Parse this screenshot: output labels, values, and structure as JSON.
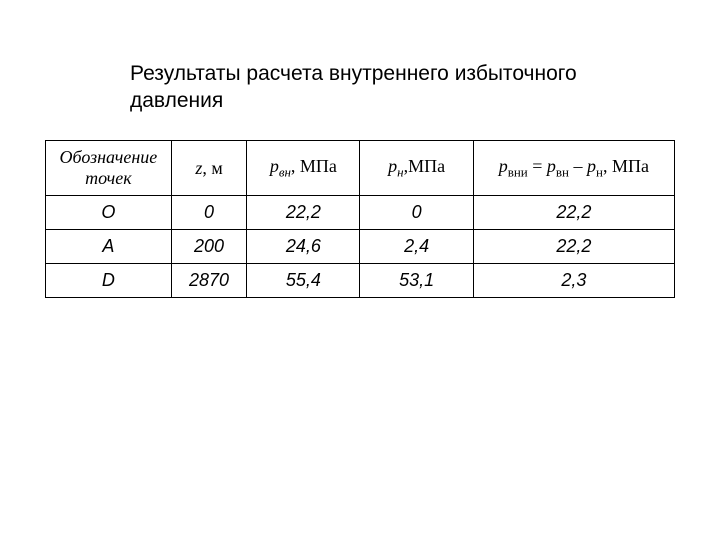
{
  "title": "Результаты расчета внутреннего избыточного давления",
  "table": {
    "type": "table",
    "background_color": "#ffffff",
    "border_color": "#000000",
    "header_font": "Times New Roman italic",
    "body_font": "Arial italic",
    "header_fontsize": 18,
    "body_fontsize": 18,
    "column_widths_percent": [
      20,
      12,
      18,
      18,
      32
    ],
    "columns": [
      {
        "key": "label",
        "label_html": "Обозначение точек"
      },
      {
        "key": "z",
        "label_html": "<span>z</span><span class=\"roman\">, м</span>"
      },
      {
        "key": "pvn",
        "label_html": "<span>p</span><span class=\"sub\">вн</span><span class=\"roman\">, МПа</span>"
      },
      {
        "key": "pn",
        "label_html": "<span>p</span><span class=\"sub\">н</span><span class=\"roman\">,МПа</span>"
      },
      {
        "key": "pvni",
        "label_html": "<span>p</span><span class=\"sub roman\">вни</span><span class=\"roman\"> = </span><span>p</span><span class=\"sub roman\">вн</span><span class=\"roman\"> – </span><span>p</span><span class=\"sub roman\">н</span><span class=\"roman\">, МПа</span>"
      }
    ],
    "rows": [
      {
        "label": "O",
        "z": "0",
        "pvn": "22,2",
        "pn": "0",
        "pvni": "22,2"
      },
      {
        "label": "A",
        "z": "200",
        "pvn": "24,6",
        "pn": "2,4",
        "pvni": "22,2"
      },
      {
        "label": "D",
        "z": "2870",
        "pvn": "55,4",
        "pn": "53,1",
        "pvni": "2,3"
      }
    ]
  }
}
